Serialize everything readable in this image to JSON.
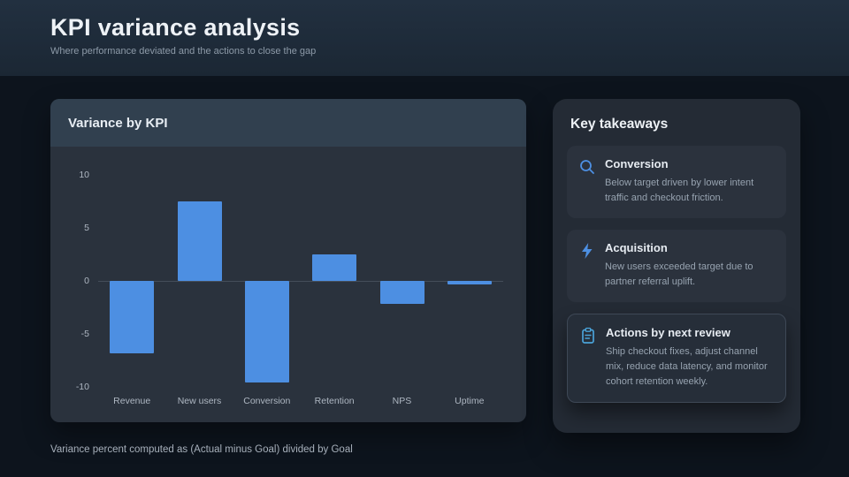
{
  "header": {
    "title": "KPI variance analysis",
    "subtitle": "Where performance deviated and the actions to close the gap"
  },
  "chart_card": {
    "title": "Variance by KPI"
  },
  "chart_data": {
    "type": "bar",
    "title": "Variance by KPI",
    "categories": [
      "Revenue",
      "New users",
      "Conversion",
      "Retention",
      "NPS",
      "Uptime"
    ],
    "values": [
      -6.8,
      7.5,
      -9.6,
      2.5,
      -2.2,
      -0.3
    ],
    "ylim": [
      -10,
      10
    ],
    "yticks": [
      10,
      5,
      0,
      -5,
      -10
    ],
    "xlabel": "",
    "ylabel": "",
    "grid": false,
    "legend": "none",
    "bar_color": "#4d8fe2"
  },
  "takeaways": {
    "title": "Key takeaways",
    "items": [
      {
        "icon": "magnifier-icon",
        "title": "Conversion",
        "text": "Below target driven by lower intent traffic and checkout friction."
      },
      {
        "icon": "bolt-icon",
        "title": "Acquisition",
        "text": "New users exceeded target due to partner referral uplift."
      },
      {
        "icon": "clipboard-icon",
        "title": "Actions by next review",
        "text": "Ship checkout fixes, adjust channel mix, reduce data latency, and monitor cohort retention weekly."
      }
    ]
  },
  "footer": {
    "note": "Variance percent computed as (Actual minus Goal) divided by Goal"
  },
  "colors": {
    "accent": "#4d8fe2",
    "background": "#0d141d",
    "card": "#2a323d",
    "card_header": "#31404f",
    "panel": "#242b35"
  }
}
